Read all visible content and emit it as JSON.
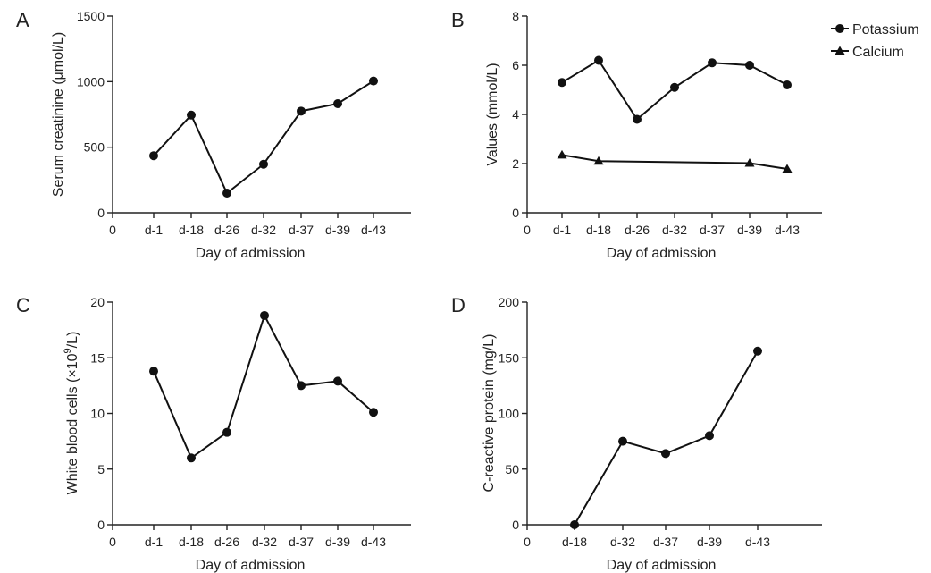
{
  "figure": {
    "colors": {
      "ink": "#111111",
      "axis": "#222222",
      "background": "#ffffff"
    }
  },
  "chart_data": [
    {
      "panel": "A",
      "type": "line",
      "categories": [
        "0",
        "d-1",
        "d-18",
        "d-26",
        "d-32",
        "d-37",
        "d-39",
        "d-43"
      ],
      "series": [
        {
          "marker": "circle",
          "points": [
            {
              "x": "d-1",
              "y": 435
            },
            {
              "x": "d-18",
              "y": 745
            },
            {
              "x": "d-26",
              "y": 150
            },
            {
              "x": "d-32",
              "y": 370
            },
            {
              "x": "d-37",
              "y": 775
            },
            {
              "x": "d-39",
              "y": 832
            },
            {
              "x": "d-43",
              "y": 1005
            }
          ]
        }
      ],
      "xlabel": "Day of admission",
      "ylabel": "Serum creatinine (μmol/L)",
      "ylim": [
        0,
        1500
      ],
      "yticks": [
        0,
        500,
        1000,
        1500
      ],
      "grid": false
    },
    {
      "panel": "B",
      "type": "line",
      "categories": [
        "0",
        "d-1",
        "d-18",
        "d-26",
        "d-32",
        "d-37",
        "d-39",
        "d-43"
      ],
      "series": [
        {
          "name": "Potassium",
          "marker": "circle",
          "points": [
            {
              "x": "d-1",
              "y": 5.3
            },
            {
              "x": "d-18",
              "y": 6.2
            },
            {
              "x": "d-26",
              "y": 3.8
            },
            {
              "x": "d-32",
              "y": 5.1
            },
            {
              "x": "d-37",
              "y": 6.1
            },
            {
              "x": "d-39",
              "y": 6.0
            },
            {
              "x": "d-43",
              "y": 5.2
            }
          ]
        },
        {
          "name": "Calcium",
          "marker": "triangle",
          "points": [
            {
              "x": "d-1",
              "y": 2.35
            },
            {
              "x": "d-18",
              "y": 2.1
            },
            {
              "x": "d-39",
              "y": 2.02
            },
            {
              "x": "d-43",
              "y": 1.78
            }
          ]
        }
      ],
      "legend_position": "top-right",
      "xlabel": "Day of admission",
      "ylabel": "Values (mmol/L)",
      "ylim": [
        0,
        8
      ],
      "yticks": [
        0,
        2,
        4,
        6,
        8
      ],
      "grid": false
    },
    {
      "panel": "C",
      "type": "line",
      "categories": [
        "0",
        "d-1",
        "d-18",
        "d-26",
        "d-32",
        "d-37",
        "d-39",
        "d-43"
      ],
      "series": [
        {
          "marker": "circle",
          "points": [
            {
              "x": "d-1",
              "y": 13.8
            },
            {
              "x": "d-18",
              "y": 6.0
            },
            {
              "x": "d-26",
              "y": 8.3
            },
            {
              "x": "d-32",
              "y": 18.8
            },
            {
              "x": "d-37",
              "y": 12.5
            },
            {
              "x": "d-39",
              "y": 12.9
            },
            {
              "x": "d-43",
              "y": 10.1
            }
          ]
        }
      ],
      "xlabel": "Day of admission",
      "ylabel": "White blood cells (×10",
      "ylabel_superscript": "9",
      "ylabel_suffix": "/L)",
      "ylim": [
        0,
        20
      ],
      "yticks": [
        0,
        5,
        10,
        15,
        20
      ],
      "grid": false
    },
    {
      "panel": "D",
      "type": "line",
      "categories": [
        "0",
        "d-18",
        "d-32",
        "d-37",
        "d-39",
        "d-43"
      ],
      "series": [
        {
          "marker": "circle",
          "points": [
            {
              "x": "d-18",
              "y": 0
            },
            {
              "x": "d-32",
              "y": 75
            },
            {
              "x": "d-37",
              "y": 64
            },
            {
              "x": "d-39",
              "y": 80
            },
            {
              "x": "d-43",
              "y": 156
            }
          ]
        }
      ],
      "xlabel": "Day of admission",
      "ylabel": "C-reactive protein (mg/L)",
      "ylim": [
        0,
        200
      ],
      "yticks": [
        0,
        50,
        100,
        150,
        200
      ],
      "grid": false
    }
  ]
}
